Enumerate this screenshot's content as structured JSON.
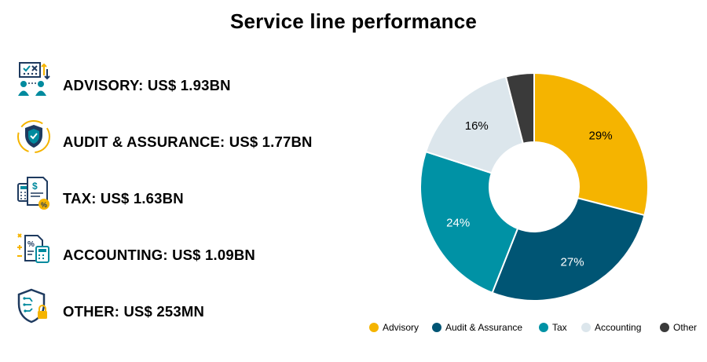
{
  "title": "Service line performance",
  "service_lines": [
    {
      "icon": "advisory-icon",
      "label": "ADVISORY: US$ 1.93BN"
    },
    {
      "icon": "audit-shield-icon",
      "label": "AUDIT & ASSURANCE: US$ 1.77BN"
    },
    {
      "icon": "tax-document-icon",
      "label": "TAX: US$ 1.63BN"
    },
    {
      "icon": "accounting-calculator-icon",
      "label": "ACCOUNTING: US$ 1.09BN"
    },
    {
      "icon": "cyber-shield-lock-icon",
      "label": "OTHER: US$ 253MN"
    }
  ],
  "colors": {
    "advisory": "#F5B400",
    "audit": "#005574",
    "tax": "#0092A5",
    "accounting": "#DCE6EC",
    "other": "#3A3A3A",
    "icon_teal": "#008A9E",
    "icon_navy": "#1E3A5F",
    "icon_gold": "#F5B400"
  },
  "chart_data": {
    "type": "pie",
    "donut": true,
    "categories": [
      "Advisory",
      "Audit & Assurance",
      "Tax",
      "Accounting",
      "Other"
    ],
    "values": [
      29,
      27,
      24,
      16,
      4
    ],
    "data_labels": [
      "29%",
      "27%",
      "24%",
      "16%",
      ""
    ],
    "legend_position": "bottom",
    "start": "top, clockwise"
  }
}
